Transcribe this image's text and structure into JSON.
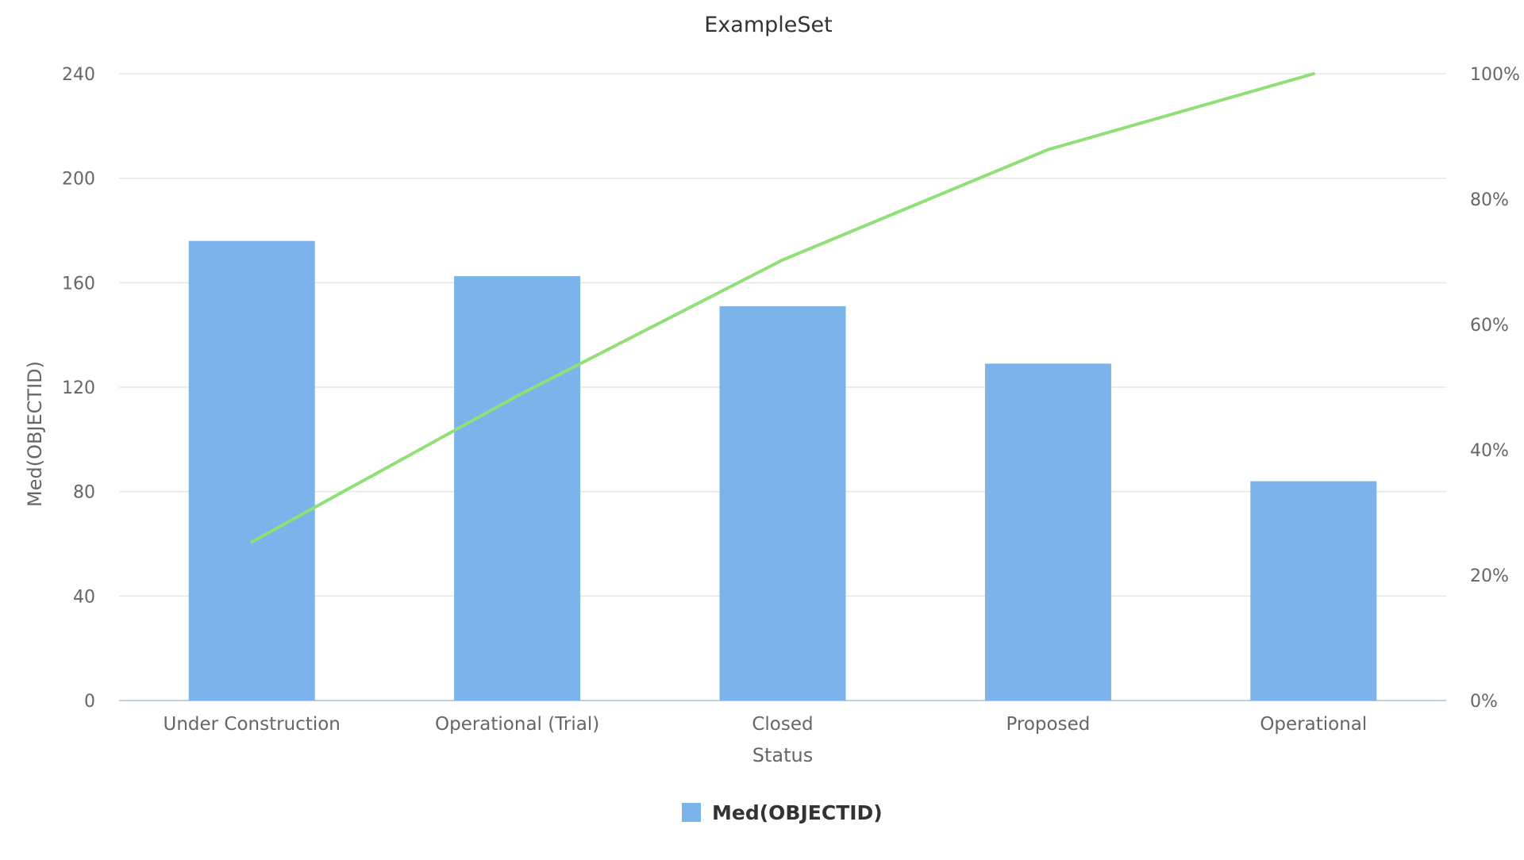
{
  "chart_data": {
    "type": "bar",
    "title": "ExampleSet",
    "xlabel": "Status",
    "ylabel": "Med(OBJECTID)",
    "categories": [
      "Under Construction",
      "Operational (Trial)",
      "Closed",
      "Proposed",
      "Operational"
    ],
    "series": [
      {
        "name": "Med(OBJECTID)",
        "type": "bar",
        "axis": "left",
        "color": "#7cb3ea",
        "values": [
          176,
          162.5,
          151,
          129,
          84
        ]
      },
      {
        "type": "line",
        "axis": "right",
        "color": "#8ee077",
        "values": [
          25.3,
          48.6,
          70.3,
          87.9,
          100
        ]
      }
    ],
    "ylim": [
      0,
      240
    ],
    "y_ticks": [
      0,
      40,
      80,
      120,
      160,
      200,
      240
    ],
    "y2lim": [
      0,
      100
    ],
    "y2_ticks": [
      0,
      20,
      40,
      60,
      80,
      100
    ],
    "y2_tick_suffix": "%",
    "legend_position": "bottom-center",
    "grid": true,
    "colors": {
      "grid": "#e6e6e6",
      "axis_line": "#c0d0e0",
      "tick_text": "#666666",
      "title_text": "#333333",
      "legend_text": "#333333"
    }
  }
}
